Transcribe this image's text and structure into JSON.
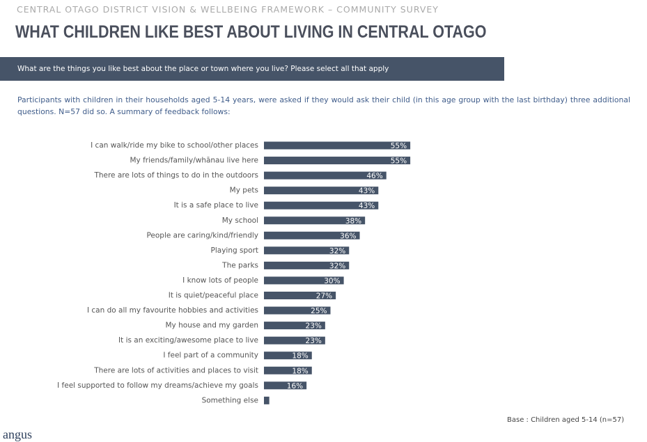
{
  "header": {
    "kicker": "CENTRAL OTAGO DISTRICT VISION & WELLBEING FRAMEWORK – COMMUNITY SURVEY",
    "title": "WHAT CHILDREN LIKE BEST ABOUT LIVING IN CENTRAL OTAGO"
  },
  "question": "What are the things you like best about the place or town where you live?  Please select all that apply",
  "intro": "Participants with children in their households aged 5-14 years, were asked if they would ask their child (in this age group with the last birthday) three additional questions.  N=57 did so.  A summary of feedback follows:",
  "chart_data": {
    "type": "barh",
    "color": "#465468",
    "categories": [
      "I can walk/ride my bike to school/other places",
      "My friends/family/whānau live here",
      "There are lots of things to do in the outdoors",
      "My pets",
      "It is a safe place to live",
      "My school",
      "People are caring/kind/friendly",
      "Playing sport",
      "The parks",
      "I know lots of people",
      "It is quiet/peaceful place",
      "I can do all my favourite hobbies and activities",
      "My house and my garden",
      "It is an exciting/awesome place to live",
      "I feel part of a community",
      "There are lots of activities and places to visit",
      "I feel supported to follow my dreams/achieve my goals",
      "Something else"
    ],
    "values": [
      55,
      55,
      46,
      43,
      43,
      38,
      36,
      32,
      32,
      30,
      27,
      25,
      23,
      23,
      18,
      18,
      16,
      2
    ],
    "value_labels": [
      "55%",
      "55%",
      "46%",
      "43%",
      "43%",
      "38%",
      "36%",
      "32%",
      "32%",
      "30%",
      "27%",
      "25%",
      "23%",
      "23%",
      "18%",
      "18%",
      "16%",
      null
    ]
  },
  "footnote": "Base : Children aged 5-14 (n=57)",
  "logo": "angus"
}
